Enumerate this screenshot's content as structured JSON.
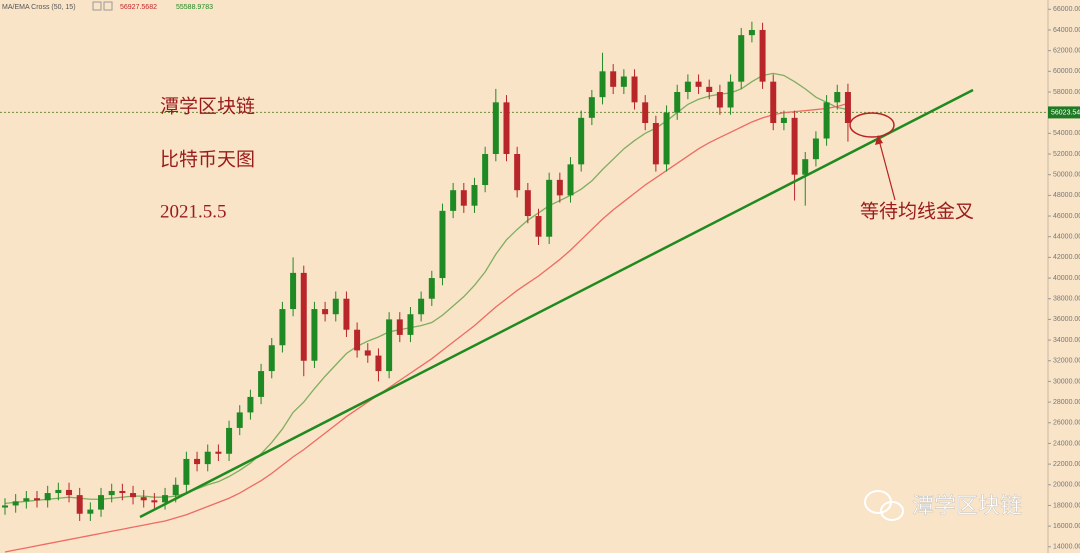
{
  "chart_data": {
    "type": "candlestick",
    "indicator": "MA/EMA Cross (50, 15)",
    "indicator_values": [
      56927.5682,
      55588.9783
    ],
    "headline": "潭学区块链",
    "subtitle": "比特币天图",
    "date": "2021.5.5",
    "annotation": "等待均线金叉",
    "watermark": "潭学区块链",
    "last_price": 56023.54,
    "up_color": "#1f8a24",
    "down_color": "#b8262a",
    "open": [
      17800,
      18000,
      18400,
      18700,
      18500,
      19200,
      19500,
      19000,
      17200,
      17600,
      19000,
      19400,
      19200,
      18800,
      18500,
      18300,
      19000,
      20000,
      22500,
      22000,
      23200,
      23000,
      25500,
      27000,
      28500,
      31000,
      33500,
      37000,
      40500,
      32000,
      37000,
      36500,
      38000,
      35000,
      33000,
      32500,
      31000,
      36000,
      34500,
      36500,
      38000,
      40000,
      46500,
      48500,
      47000,
      49000,
      52000,
      57000,
      52000,
      48500,
      46000,
      44000,
      49500,
      48000,
      51000,
      55500,
      57500,
      60000,
      58500,
      59500,
      57000,
      55000,
      51000,
      56000,
      58000,
      59000,
      58500,
      58000,
      56500,
      59000,
      63500,
      64000,
      59000,
      55000,
      55500,
      50000,
      51500,
      53500,
      57000,
      58000
    ],
    "high": [
      18700,
      19100,
      19400,
      19400,
      19900,
      20200,
      20200,
      19700,
      18300,
      19700,
      20100,
      20100,
      19900,
      19500,
      19200,
      19700,
      20700,
      23200,
      23200,
      23900,
      23900,
      26200,
      27700,
      29200,
      31700,
      34200,
      37700,
      42000,
      41200,
      37700,
      37700,
      38700,
      38700,
      35700,
      33700,
      33200,
      36700,
      36700,
      37200,
      38700,
      40700,
      47200,
      49200,
      49200,
      49700,
      52700,
      58300,
      57700,
      52700,
      49200,
      46700,
      50200,
      50200,
      51700,
      56200,
      58200,
      61800,
      60700,
      60200,
      60200,
      57700,
      55700,
      56700,
      58700,
      59700,
      59700,
      59200,
      58700,
      59700,
      64200,
      64800,
      64700,
      59700,
      56200,
      56200,
      52200,
      54200,
      57700,
      58700,
      58800
    ],
    "low": [
      17100,
      17300,
      17700,
      17800,
      17800,
      18500,
      18300,
      16500,
      16500,
      16900,
      18300,
      18500,
      18100,
      17800,
      17600,
      17600,
      18300,
      19300,
      21300,
      21300,
      22300,
      22300,
      24800,
      26300,
      27800,
      30300,
      32800,
      36300,
      30500,
      31300,
      35800,
      35800,
      34300,
      32300,
      31800,
      30000,
      30300,
      33800,
      33800,
      35800,
      37300,
      39300,
      45800,
      46300,
      46300,
      48300,
      51300,
      51300,
      47800,
      45300,
      43200,
      43300,
      47300,
      47300,
      50300,
      54800,
      56800,
      57800,
      57800,
      56300,
      54300,
      50300,
      50300,
      55300,
      57300,
      57800,
      57300,
      55800,
      55800,
      58300,
      62800,
      58300,
      54300,
      54300,
      47500,
      47000,
      50800,
      52800,
      56300,
      53200
    ],
    "close": [
      18000,
      18400,
      18700,
      18500,
      19200,
      19500,
      19000,
      17200,
      17600,
      19000,
      19400,
      19200,
      18800,
      18500,
      18300,
      19000,
      20000,
      22500,
      22000,
      23200,
      23000,
      25500,
      27000,
      28500,
      31000,
      33500,
      37000,
      40500,
      32000,
      37000,
      36500,
      38000,
      35000,
      33000,
      32500,
      31000,
      36000,
      34500,
      36500,
      38000,
      40000,
      46500,
      48500,
      47000,
      49000,
      52000,
      57000,
      52000,
      48500,
      46000,
      44000,
      49500,
      48000,
      51000,
      55500,
      57500,
      60000,
      58500,
      59500,
      57000,
      55000,
      51000,
      56000,
      58000,
      59000,
      58500,
      58000,
      56500,
      59000,
      63500,
      64000,
      59000,
      55000,
      55500,
      50000,
      51500,
      53500,
      57000,
      58000,
      55000
    ],
    "lines": [
      {
        "color": "#7fae5e",
        "values": [
          18200,
          18300,
          18400,
          18500,
          18600,
          18700,
          18800,
          18700,
          18600,
          18600,
          18700,
          18800,
          18900,
          18900,
          18800,
          18800,
          18900,
          19200,
          19600,
          20000,
          20300,
          20800,
          21400,
          22100,
          23000,
          24100,
          25400,
          27000,
          28000,
          29300,
          30500,
          31600,
          32700,
          33400,
          33900,
          34300,
          34800,
          35000,
          35200,
          35400,
          35700,
          36400,
          37300,
          38200,
          39300,
          40600,
          42300,
          43700,
          44700,
          45600,
          46300,
          47000,
          47500,
          48000,
          48600,
          49400,
          50500,
          51500,
          52500,
          53300,
          54000,
          54500,
          55200,
          56000,
          56800,
          57300,
          57600,
          57800,
          57900,
          58300,
          59000,
          59600,
          59800,
          59600,
          59000,
          58300,
          57500,
          57000,
          56500,
          56300
        ]
      },
      {
        "color": "#ee6b63",
        "values": [
          13500,
          13700,
          13900,
          14100,
          14300,
          14500,
          14700,
          14900,
          15100,
          15300,
          15500,
          15700,
          15900,
          16100,
          16300,
          16500,
          16800,
          17100,
          17500,
          17900,
          18300,
          18700,
          19200,
          19800,
          20400,
          21100,
          21900,
          22700,
          23400,
          24200,
          25000,
          25800,
          26600,
          27300,
          28000,
          28700,
          29400,
          30100,
          30800,
          31500,
          32200,
          33000,
          33800,
          34600,
          35400,
          36300,
          37200,
          38000,
          38800,
          39500,
          40200,
          41000,
          41800,
          42700,
          43700,
          44700,
          45700,
          46600,
          47400,
          48200,
          49000,
          49700,
          50400,
          51100,
          51800,
          52500,
          53100,
          53600,
          54100,
          54600,
          55100,
          55500,
          55800,
          56000,
          56100,
          56200,
          56300,
          56400,
          56600,
          56900
        ]
      }
    ],
    "ylim": [
      13400,
      66900
    ],
    "yticks": [
      {
        "value": 14000,
        "label": "14000.00"
      },
      {
        "value": 16000,
        "label": "16000.00"
      },
      {
        "value": 18000,
        "label": "18000.00"
      },
      {
        "value": 20000,
        "label": "20000.00"
      },
      {
        "value": 22000,
        "label": "22000.00"
      },
      {
        "value": 24000,
        "label": "24000.00"
      },
      {
        "value": 26000,
        "label": "26000.00"
      },
      {
        "value": 28000,
        "label": "28000.00"
      },
      {
        "value": 30000,
        "label": "30000.00"
      },
      {
        "value": 32000,
        "label": "32000.00"
      },
      {
        "value": 34000,
        "label": "34000.00"
      },
      {
        "value": 36000,
        "label": "36000.00"
      },
      {
        "value": 38000,
        "label": "38000.00"
      },
      {
        "value": 40000,
        "label": "40000.00"
      },
      {
        "value": 42000,
        "label": "42000.00"
      },
      {
        "value": 44000,
        "label": "44000.00"
      },
      {
        "value": 46000,
        "label": "46000.00"
      },
      {
        "value": 48000,
        "label": "48000.00"
      },
      {
        "value": 50000,
        "label": "50000.00"
      },
      {
        "value": 52000,
        "label": "52000.00"
      },
      {
        "value": 54000,
        "label": "54000.00"
      },
      {
        "value": 56000,
        "label": "56000.00"
      },
      {
        "value": 58000,
        "label": "58000.00"
      },
      {
        "value": 60000,
        "label": "60000.00"
      },
      {
        "value": 62000,
        "label": "62000.00"
      },
      {
        "value": 64000,
        "label": "64000.00"
      },
      {
        "value": 66000,
        "label": "66000.00"
      }
    ]
  }
}
